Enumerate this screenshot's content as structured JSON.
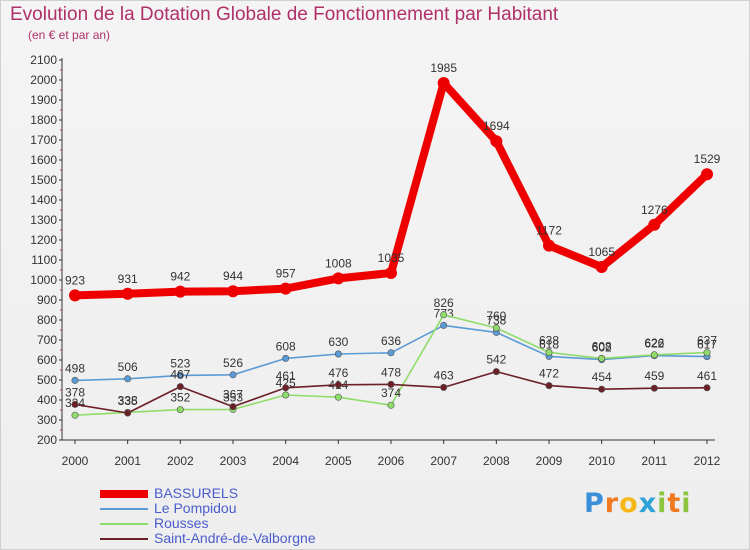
{
  "title": "Evolution de la Dotation Globale de Fonctionnement par Habitant",
  "subtitle": "(en € et par an)",
  "logo": {
    "letters": [
      "P",
      "r",
      "o",
      "x",
      "i",
      "t",
      "i"
    ],
    "colors": [
      "#3a8fd8",
      "#f07a20",
      "#f7b718",
      "#2da3d8",
      "#8bc53f",
      "#f07a20",
      "#8bc53f"
    ]
  },
  "chart_data": {
    "type": "line",
    "title": "Evolution de la Dotation Globale de Fonctionnement par Habitant",
    "subtitle": "(en € et par an)",
    "xlabel": "",
    "ylabel": "",
    "x": [
      "2000",
      "2001",
      "2002",
      "2003",
      "2004",
      "2005",
      "2006",
      "2007",
      "2008",
      "2009",
      "2010",
      "2011",
      "2012"
    ],
    "ylim": [
      200,
      2100
    ],
    "yticks": [
      200,
      300,
      400,
      500,
      600,
      700,
      800,
      900,
      1000,
      1100,
      1200,
      1300,
      1400,
      1500,
      1600,
      1700,
      1800,
      1900,
      2000,
      2100
    ],
    "grid": false,
    "legend_position": "bottom-left",
    "series": [
      {
        "name": "BASSURELS",
        "color": "#ee0000",
        "emphasis": true,
        "show_labels": true,
        "values": [
          923,
          931,
          942,
          944,
          957,
          1008,
          1035,
          1985,
          1694,
          1172,
          1065,
          1276,
          1529
        ]
      },
      {
        "name": "Le Pompidou",
        "color": "#5b9bd5",
        "emphasis": false,
        "show_labels": true,
        "values": [
          498,
          506,
          523,
          526,
          608,
          630,
          636,
          773,
          738,
          618,
          602,
          622,
          617
        ]
      },
      {
        "name": "Rousses",
        "color": "#90dc6a",
        "emphasis": false,
        "show_labels": true,
        "values": [
          324,
          338,
          352,
          353,
          425,
          414,
          374,
          826,
          760,
          638,
          608,
          626,
          637
        ]
      },
      {
        "name": "Saint-André-de-Valborgne",
        "color": "#6b1f26",
        "emphasis": false,
        "show_labels": true,
        "values": [
          378,
          335,
          467,
          367,
          461,
          476,
          478,
          463,
          542,
          472,
          454,
          459,
          461
        ]
      }
    ]
  }
}
